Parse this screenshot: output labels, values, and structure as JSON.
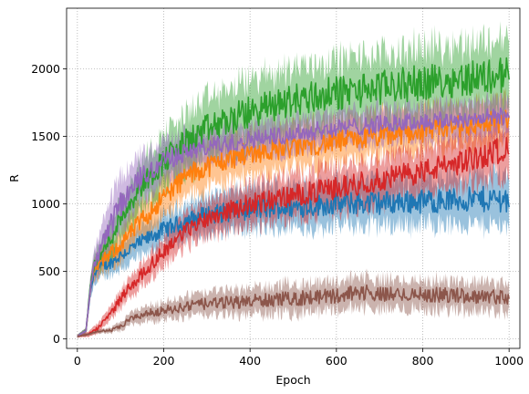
{
  "chart_data": {
    "type": "line",
    "xlabel": "Epoch",
    "ylabel": "R",
    "xlim": [
      -25,
      1025
    ],
    "ylim": [
      -70,
      2450
    ],
    "grid": true,
    "grid_style": "dotted",
    "legend": false,
    "x_ticks": [
      0,
      200,
      400,
      600,
      800,
      1000
    ],
    "y_ticks": [
      0,
      500,
      1000,
      1500,
      2000
    ],
    "x_tick_labels": [
      "0",
      "200",
      "400",
      "600",
      "800",
      "1000"
    ],
    "y_tick_labels": [
      "0",
      "500",
      "1000",
      "1500",
      "2000"
    ],
    "shaded_band": "mean ± spread",
    "series": [
      {
        "color": "#1f77b4",
        "x": [
          0,
          20,
          30,
          40,
          60,
          80,
          100,
          150,
          200,
          250,
          300,
          400,
          500,
          600,
          700,
          800,
          900,
          1000
        ],
        "y": [
          20,
          60,
          350,
          500,
          540,
          570,
          620,
          720,
          810,
          870,
          920,
          960,
          980,
          1000,
          1010,
          1020,
          1030,
          1040
        ],
        "band": [
          10,
          20,
          60,
          80,
          80,
          80,
          90,
          100,
          110,
          120,
          130,
          140,
          150,
          150,
          160,
          160,
          170,
          180
        ]
      },
      {
        "color": "#ff7f0e",
        "x": [
          0,
          20,
          30,
          40,
          60,
          80,
          100,
          150,
          200,
          250,
          300,
          400,
          500,
          600,
          700,
          800,
          900,
          1000
        ],
        "y": [
          20,
          60,
          380,
          520,
          580,
          640,
          700,
          880,
          1050,
          1200,
          1280,
          1380,
          1420,
          1460,
          1500,
          1540,
          1580,
          1620
        ],
        "band": [
          10,
          20,
          60,
          80,
          90,
          100,
          110,
          130,
          140,
          150,
          150,
          150,
          150,
          150,
          150,
          150,
          150,
          160
        ]
      },
      {
        "color": "#2ca02c",
        "x": [
          0,
          20,
          30,
          40,
          60,
          80,
          100,
          150,
          200,
          250,
          300,
          400,
          500,
          600,
          700,
          800,
          900,
          1000
        ],
        "y": [
          20,
          60,
          400,
          560,
          650,
          760,
          900,
          1150,
          1320,
          1450,
          1550,
          1680,
          1770,
          1820,
          1860,
          1900,
          1930,
          1960
        ],
        "band": [
          10,
          20,
          60,
          80,
          100,
          120,
          140,
          160,
          180,
          200,
          210,
          220,
          230,
          230,
          230,
          240,
          240,
          250
        ]
      },
      {
        "color": "#d62728",
        "x": [
          0,
          20,
          40,
          60,
          80,
          100,
          120,
          150,
          200,
          250,
          300,
          400,
          500,
          600,
          700,
          800,
          900,
          1000
        ],
        "y": [
          20,
          30,
          60,
          120,
          200,
          300,
          380,
          480,
          650,
          800,
          900,
          1000,
          1060,
          1120,
          1180,
          1240,
          1320,
          1420
        ],
        "band": [
          10,
          15,
          30,
          40,
          50,
          60,
          70,
          80,
          100,
          110,
          120,
          140,
          150,
          150,
          160,
          160,
          170,
          180
        ]
      },
      {
        "color": "#9467bd",
        "x": [
          0,
          20,
          30,
          40,
          60,
          80,
          100,
          150,
          200,
          250,
          300,
          400,
          500,
          600,
          700,
          800,
          900,
          1000
        ],
        "y": [
          20,
          60,
          380,
          550,
          700,
          850,
          1000,
          1200,
          1320,
          1380,
          1420,
          1480,
          1520,
          1560,
          1590,
          1610,
          1630,
          1650
        ],
        "band": [
          10,
          20,
          80,
          110,
          150,
          170,
          180,
          160,
          140,
          130,
          120,
          120,
          120,
          120,
          120,
          120,
          120,
          120
        ]
      },
      {
        "color": "#8c564b",
        "x": [
          0,
          20,
          40,
          60,
          80,
          100,
          120,
          150,
          200,
          250,
          300,
          400,
          500,
          600,
          650,
          700,
          800,
          900,
          1000
        ],
        "y": [
          20,
          30,
          50,
          60,
          65,
          90,
          140,
          180,
          210,
          240,
          260,
          280,
          300,
          320,
          350,
          330,
          330,
          320,
          310
        ],
        "band": [
          5,
          10,
          12,
          15,
          20,
          30,
          40,
          50,
          60,
          70,
          80,
          90,
          100,
          100,
          110,
          100,
          100,
          100,
          100
        ]
      }
    ]
  }
}
